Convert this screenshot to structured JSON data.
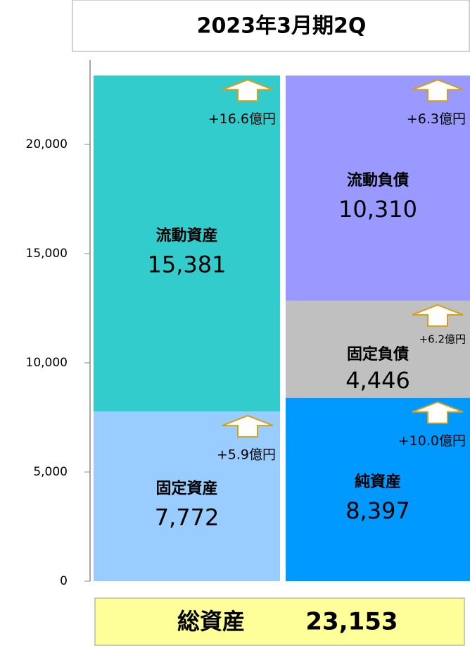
{
  "chart_data": {
    "type": "stacked_bar",
    "title": "2023年3月期2Q",
    "categories": [
      null,
      null
    ],
    "ylim": [
      0,
      24000
    ],
    "yticks": [
      0,
      {
        "value": 5000,
        "label": "5,000"
      },
      {
        "value": 10000,
        "label": "10,000"
      },
      {
        "value": 15000,
        "label": "15,000"
      },
      {
        "value": 20000,
        "label": "20,000"
      }
    ],
    "series": [
      {
        "name": "固定資産",
        "color": "#99ccff",
        "values": [
          7772,
          null
        ],
        "value_labels": [
          "7,772",
          null
        ],
        "annotation": "+5.9億円"
      },
      {
        "name": "流動資産",
        "color": "#33cccc",
        "values": [
          15381,
          null
        ],
        "value_labels": [
          "15,381",
          null
        ],
        "annotation": "+16.6億円"
      },
      {
        "name": "純資産",
        "color": "#0099ff",
        "values": [
          null,
          8397
        ],
        "value_labels": [
          null,
          "8,397"
        ],
        "annotation": "+10.0億円"
      },
      {
        "name": "固定負債",
        "color": "#c0c0c0",
        "values": [
          null,
          4446
        ],
        "value_labels": [
          null,
          "4,446"
        ],
        "annotation": "+6.2億円"
      },
      {
        "name": "流動負債",
        "color": "#9999ff",
        "values": [
          null,
          10310
        ],
        "value_labels": [
          null,
          "10,310"
        ],
        "annotation": "+6.3億円"
      }
    ],
    "total": {
      "label": "総資産",
      "values": [
        23153
      ],
      "value_labels": [
        "23,153"
      ]
    }
  }
}
